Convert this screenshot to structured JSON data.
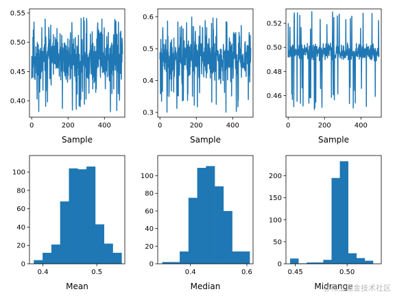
{
  "watermark": "@稀土掘金技术社区",
  "chart_data": [
    {
      "type": "line",
      "xlabel": "Sample",
      "xlim": [
        -12,
        512
      ],
      "ylim": [
        0.372,
        0.557
      ],
      "xticks": [
        0,
        200,
        400
      ],
      "yticks": [
        0.4,
        0.45,
        0.5,
        0.55
      ],
      "ytick_labels": [
        "0.40",
        "0.45",
        "0.50",
        "0.55"
      ],
      "color": "#1f77b4",
      "series": [
        {
          "seed": 11,
          "center": 0.47,
          "spread": 0.025,
          "spikes_hi": 0.545,
          "spikes_lo": 0.38
        }
      ],
      "n_points": 500
    },
    {
      "type": "line",
      "xlabel": "Sample",
      "xlim": [
        -12,
        512
      ],
      "ylim": [
        0.285,
        0.625
      ],
      "xticks": [
        0,
        200,
        400
      ],
      "yticks": [
        0.3,
        0.4,
        0.5,
        0.6
      ],
      "ytick_labels": [
        "0.3",
        "0.4",
        "0.5",
        "0.6"
      ],
      "color": "#1f77b4",
      "series": [
        {
          "seed": 23,
          "center": 0.47,
          "spread": 0.04,
          "spikes_hi": 0.6,
          "spikes_lo": 0.3
        }
      ],
      "n_points": 500
    },
    {
      "type": "line",
      "xlabel": "Sample",
      "xlim": [
        -12,
        512
      ],
      "ylim": [
        0.442,
        0.532
      ],
      "xticks": [
        0,
        200,
        400
      ],
      "yticks": [
        0.46,
        0.48,
        0.5,
        0.52
      ],
      "ytick_labels": [
        "0.46",
        "0.48",
        "0.50",
        "0.52"
      ],
      "color": "#1f77b4",
      "series": [
        {
          "seed": 37,
          "center": 0.496,
          "spread": 0.004,
          "spikes_hi": 0.53,
          "spikes_lo": 0.446
        }
      ],
      "n_points": 500
    },
    {
      "type": "bar",
      "xlabel": "Mean",
      "xlim": [
        0.375,
        0.552
      ],
      "ylim": [
        0,
        118
      ],
      "xticks": [
        0.4,
        0.5
      ],
      "xtick_labels": [
        "0.4",
        "0.5"
      ],
      "yticks": [
        0,
        20,
        40,
        60,
        80,
        100
      ],
      "color": "#1f77b4",
      "bin_edges": [
        0.383,
        0.3993,
        0.4156,
        0.4319,
        0.4482,
        0.4645,
        0.4808,
        0.4971,
        0.5134,
        0.5297,
        0.546
      ],
      "values": [
        4,
        12,
        21,
        68,
        104,
        103,
        106,
        43,
        22,
        12
      ]
    },
    {
      "type": "bar",
      "xlabel": "Median",
      "xlim": [
        0.284,
        0.622
      ],
      "ylim": [
        0,
        123
      ],
      "xticks": [
        0.4,
        0.6
      ],
      "xtick_labels": [
        "0.4",
        "0.6"
      ],
      "yticks": [
        0,
        20,
        40,
        60,
        80,
        100
      ],
      "color": "#1f77b4",
      "bin_edges": [
        0.3,
        0.331,
        0.362,
        0.393,
        0.424,
        0.455,
        0.486,
        0.517,
        0.548,
        0.579,
        0.61
      ],
      "values": [
        2,
        2,
        14,
        75,
        109,
        111,
        88,
        60,
        14,
        14
      ]
    },
    {
      "type": "bar",
      "xlabel": "Midrange",
      "xlim": [
        0.441,
        0.533
      ],
      "ylim": [
        0,
        246
      ],
      "xticks": [
        0.45,
        0.5
      ],
      "xtick_labels": [
        "0.45",
        "0.50"
      ],
      "yticks": [
        0,
        50,
        100,
        150,
        200
      ],
      "color": "#1f77b4",
      "bin_edges": [
        0.445,
        0.453,
        0.461,
        0.469,
        0.477,
        0.485,
        0.493,
        0.501,
        0.509,
        0.517,
        0.525
      ],
      "values": [
        12,
        1,
        3,
        3,
        9,
        195,
        233,
        24,
        13,
        7
      ]
    }
  ]
}
